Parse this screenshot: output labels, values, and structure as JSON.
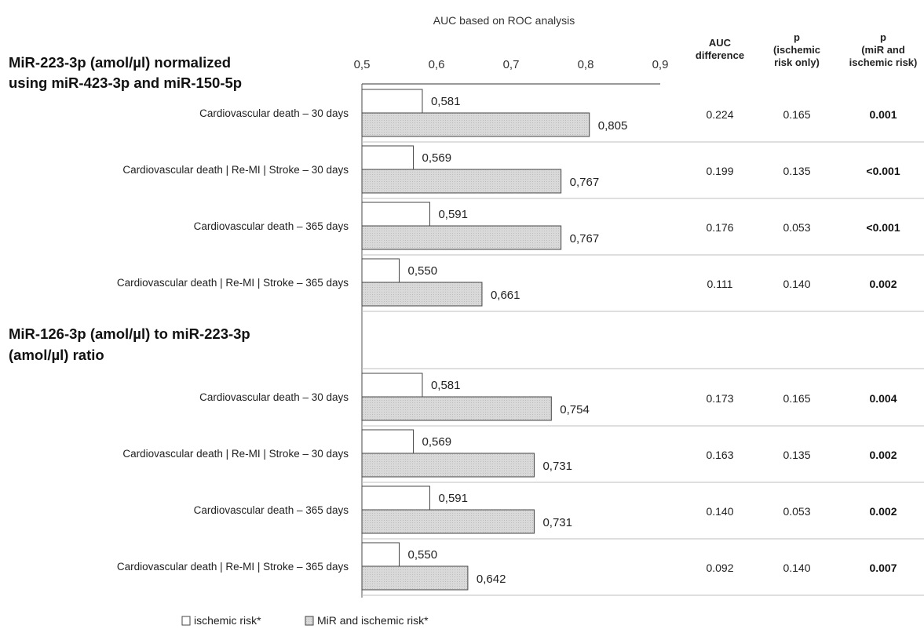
{
  "chart_data": {
    "type": "bar",
    "title": "AUC based on ROC analysis",
    "xlim": [
      0.5,
      0.9
    ],
    "ticks": [
      "0,5",
      "0,6",
      "0,7",
      "0,8",
      "0,9"
    ],
    "legend": {
      "placement": "bottom-left",
      "entries": [
        {
          "name": "ischemic risk*",
          "color": "#ffffff"
        },
        {
          "name": "MiR and ischemic risk*",
          "color": "#d9d9d9"
        }
      ]
    },
    "columns": {
      "auc_diff": [
        "AUC",
        "difference"
      ],
      "p_isch": [
        "p",
        "(ischemic",
        "risk only)"
      ],
      "p_mir": [
        "p",
        "(miR and",
        "ischemic risk)"
      ]
    },
    "groups": [
      {
        "title_lines": [
          "MiR-223-3p (amol/µl) normalized",
          "using miR-423-3p and miR-150-5p"
        ],
        "rows": [
          {
            "label": "Cardiovascular death – 30  days",
            "ischemic": 0.581,
            "ischemic_label": "0,581",
            "mir": 0.805,
            "mir_label": "0,805",
            "auc_diff": "0.224",
            "p_isch": "0.165",
            "p_mir": "0.001"
          },
          {
            "label": "Cardiovascular death | Re-MI | Stroke – 30  days",
            "ischemic": 0.569,
            "ischemic_label": "0,569",
            "mir": 0.767,
            "mir_label": "0,767",
            "auc_diff": "0.199",
            "p_isch": "0.135",
            "p_mir": "<0.001"
          },
          {
            "label": "Cardiovascular death – 365  days",
            "ischemic": 0.591,
            "ischemic_label": "0,591",
            "mir": 0.767,
            "mir_label": "0,767",
            "auc_diff": "0.176",
            "p_isch": "0.053",
            "p_mir": "<0.001"
          },
          {
            "label": "Cardiovascular death | Re-MI | Stroke – 365  days",
            "ischemic": 0.55,
            "ischemic_label": "0,550",
            "mir": 0.661,
            "mir_label": "0,661",
            "auc_diff": "0.111",
            "p_isch": "0.140",
            "p_mir": "0.002"
          }
        ]
      },
      {
        "title_lines": [
          "MiR-126-3p (amol/µl) to miR-223-3p",
          "(amol/µl) ratio"
        ],
        "rows": [
          {
            "label": "Cardiovascular death – 30  days",
            "ischemic": 0.581,
            "ischemic_label": "0,581",
            "mir": 0.754,
            "mir_label": "0,754",
            "auc_diff": "0.173",
            "p_isch": "0.165",
            "p_mir": "0.004"
          },
          {
            "label": "Cardiovascular death | Re-MI | Stroke – 30  days",
            "ischemic": 0.569,
            "ischemic_label": "0,569",
            "mir": 0.731,
            "mir_label": "0,731",
            "auc_diff": "0.163",
            "p_isch": "0.135",
            "p_mir": "0.002"
          },
          {
            "label": "Cardiovascular death – 365  days",
            "ischemic": 0.591,
            "ischemic_label": "0,591",
            "mir": 0.731,
            "mir_label": "0,731",
            "auc_diff": "0.140",
            "p_isch": "0.053",
            "p_mir": "0.002"
          },
          {
            "label": "Cardiovascular death | Re-MI | Stroke – 365  days",
            "ischemic": 0.55,
            "ischemic_label": "0,550",
            "mir": 0.642,
            "mir_label": "0,642",
            "auc_diff": "0.092",
            "p_isch": "0.140",
            "p_mir": "0.007"
          }
        ]
      }
    ]
  }
}
